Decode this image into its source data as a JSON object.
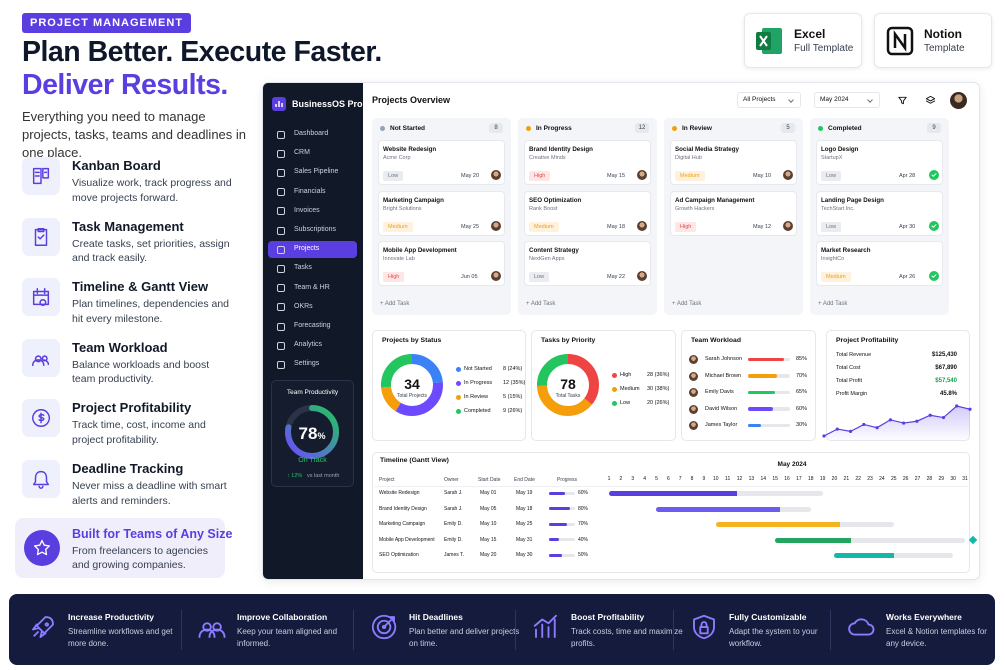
{
  "hero": {
    "badge": "PROJECT MANAGEMENT",
    "title_line1": "Plan Better. Execute Faster.",
    "title_line2": "Deliver Results.",
    "description": "Everything you need to manage projects, tasks, teams and deadlines in one place."
  },
  "features": [
    {
      "title": "Kanban Board",
      "description": "Visualize work, track progress and move projects forward."
    },
    {
      "title": "Task Management",
      "description": "Create tasks, set priorities, assign and track easily."
    },
    {
      "title": "Timeline & Gantt View",
      "description": "Plan timelines, dependencies and hit every milestone."
    },
    {
      "title": "Team Workload",
      "description": "Balance workloads and boost team productivity."
    },
    {
      "title": "Project Profitability",
      "description": "Track time, cost, income and project profitability."
    },
    {
      "title": "Deadline Tracking",
      "description": "Never miss a deadline with smart alerts and reminders."
    }
  ],
  "highlight": {
    "title": "Built for Teams of Any Size",
    "description": "From freelancers to agencies and growing companies."
  },
  "templates": [
    {
      "title": "Excel",
      "subtitle": "Full Template"
    },
    {
      "title": "Notion",
      "subtitle": "Template"
    }
  ],
  "dashboard": {
    "brand": "BusinessOS Pro",
    "nav": [
      {
        "label": "Dashboard"
      },
      {
        "label": "CRM"
      },
      {
        "label": "Sales Pipeline"
      },
      {
        "label": "Financials"
      },
      {
        "label": "Invoices"
      },
      {
        "label": "Subscriptions"
      },
      {
        "label": "Projects",
        "active": true
      },
      {
        "label": "Tasks"
      },
      {
        "label": "Team & HR"
      },
      {
        "label": "OKRs"
      },
      {
        "label": "Forecasting"
      },
      {
        "label": "Analytics"
      },
      {
        "label": "Settings"
      }
    ],
    "productivity": {
      "title": "Team Productivity",
      "value": 78,
      "unit": "%",
      "status": "On Track",
      "change": "↑ 12%",
      "change_note": "vs last month"
    },
    "page_title": "Projects Overview",
    "filters": [
      "All Projects",
      "May 2024"
    ],
    "add_task": "+ Add Task",
    "priority_colors": {
      "Low": "#64748b",
      "Medium": "#f59e0b",
      "High": "#ef4444"
    },
    "kanban": [
      {
        "name": "Not Started",
        "count": 8,
        "color": "#94a3b8",
        "cards": [
          {
            "title": "Website Redesign",
            "client": "Acme Corp",
            "tag": "Low",
            "date": "May 20"
          },
          {
            "title": "Marketing Campaign",
            "client": "Bright Solutions",
            "tag": "Medium",
            "date": "May 25"
          },
          {
            "title": "Mobile App Development",
            "client": "Innovate Lab",
            "tag": "High",
            "date": "Jun 05"
          }
        ]
      },
      {
        "name": "In Progress",
        "count": 12,
        "color": "#f59e0b",
        "cards": [
          {
            "title": "Brand Identity Design",
            "client": "Creative Minds",
            "tag": "High",
            "date": "May 15"
          },
          {
            "title": "SEO Optimization",
            "client": "Rank Boost",
            "tag": "Medium",
            "date": "May 18"
          },
          {
            "title": "Content Strategy",
            "client": "NextGen Apps",
            "tag": "Low",
            "date": "May 22"
          }
        ]
      },
      {
        "name": "In Review",
        "count": 5,
        "color": "#f59e0b",
        "cards": [
          {
            "title": "Social Media Strategy",
            "client": "Digital Hub",
            "tag": "Medium",
            "date": "May 10"
          },
          {
            "title": "Ad Campaign Management",
            "client": "Growth Hackers",
            "tag": "High",
            "date": "May 12"
          }
        ]
      },
      {
        "name": "Completed",
        "count": 9,
        "color": "#22c55e",
        "check_marks": true,
        "cards": [
          {
            "title": "Logo Design",
            "client": "StartupX",
            "tag": "Low",
            "date": "Apr 28"
          },
          {
            "title": "Landing Page Design",
            "client": "TechStart Inc.",
            "tag": "Low",
            "date": "Apr 30"
          },
          {
            "title": "Market Research",
            "client": "InsightCo",
            "tag": "Medium",
            "date": "Apr 26"
          }
        ]
      }
    ],
    "status_chart": {
      "title": "Projects by Status",
      "total": 34,
      "total_label": "Total Projects",
      "segments": [
        {
          "name": "Not Started",
          "value": 8,
          "label": "8 (24%)",
          "color": "#3b82f6"
        },
        {
          "name": "In Progress",
          "value": 12,
          "label": "12 (35%)",
          "color": "#6d4aff"
        },
        {
          "name": "In Review",
          "value": 5,
          "label": "5 (15%)",
          "color": "#f59e0b"
        },
        {
          "name": "Completed",
          "value": 9,
          "label": "9 (26%)",
          "color": "#22c55e"
        }
      ]
    },
    "priority_chart": {
      "title": "Tasks by Priority",
      "total": 78,
      "total_label": "Total Tasks",
      "segments": [
        {
          "name": "High",
          "value": 28,
          "label": "28 (36%)",
          "color": "#ef4444"
        },
        {
          "name": "Medium",
          "value": 30,
          "label": "30 (38%)",
          "color": "#f59e0b"
        },
        {
          "name": "Low",
          "value": 20,
          "label": "20 (26%)",
          "color": "#22c55e"
        }
      ]
    },
    "workload": {
      "title": "Team Workload",
      "members": [
        {
          "name": "Sarah Johnson",
          "value": 85,
          "label": "85%",
          "color": "#ef4444"
        },
        {
          "name": "Michael Brown",
          "value": 70,
          "label": "70%",
          "color": "#f59e0b"
        },
        {
          "name": "Emily Davis",
          "value": 65,
          "label": "65%",
          "color": "#22c55e"
        },
        {
          "name": "David Wilson",
          "value": 60,
          "label": "60%",
          "color": "#6d4aff"
        },
        {
          "name": "James Taylor",
          "value": 30,
          "label": "30%",
          "color": "#3b82f6"
        }
      ]
    },
    "profitability": {
      "title": "Project Profitability",
      "rows": [
        {
          "label": "Total Revenue",
          "value": "$125,430"
        },
        {
          "label": "Total Cost",
          "value": "$67,890"
        },
        {
          "label": "Total Profit",
          "value": "$57,540",
          "color": "#16a34a"
        },
        {
          "label": "Profit Margin",
          "value": "45.8%"
        }
      ],
      "trend": [
        3,
        4.5,
        4,
        5.5,
        4.8,
        6.5,
        5.8,
        6.2,
        7.5,
        7,
        9.5,
        8.8
      ]
    },
    "gantt": {
      "title": "Timeline (Gantt View)",
      "month": "May 2024",
      "columns": [
        "Project",
        "Owner",
        "Start Date",
        "End Date",
        "Progress"
      ],
      "days": [
        1,
        2,
        3,
        4,
        5,
        6,
        7,
        8,
        9,
        10,
        11,
        12,
        13,
        14,
        15,
        16,
        17,
        18,
        19,
        20,
        21,
        22,
        23,
        24,
        25,
        26,
        27,
        28,
        29,
        30,
        31
      ],
      "rows": [
        {
          "project": "Website Redesign",
          "owner": "Sarah J.",
          "start": "May 01",
          "end": "May 19",
          "start_day": 1,
          "end_day": 19,
          "progress": 60,
          "progress_label": "60%",
          "color": "#5b3ee0"
        },
        {
          "project": "Brand Identity Design",
          "owner": "Sarah J.",
          "start": "May 05",
          "end": "May 18",
          "start_day": 5,
          "end_day": 18,
          "progress": 80,
          "progress_label": "80%",
          "color": "#6d5cf0"
        },
        {
          "project": "Marketing Campaign",
          "owner": "Emily D.",
          "start": "May 10",
          "end": "May 25",
          "start_day": 10,
          "end_day": 25,
          "progress": 70,
          "progress_label": "70%",
          "color": "#f5b321"
        },
        {
          "project": "Mobile App Development",
          "owner": "Emily D.",
          "start": "May 15",
          "end": "May 31",
          "start_day": 15,
          "end_day": 31,
          "progress": 40,
          "progress_label": "40%",
          "color": "#22a55e",
          "milestone": true
        },
        {
          "project": "SEO Optimization",
          "owner": "James T.",
          "start": "May 20",
          "end": "May 30",
          "start_day": 20,
          "end_day": 30,
          "progress": 50,
          "progress_label": "50%",
          "color": "#14b8a6"
        }
      ]
    }
  },
  "benefits": [
    {
      "title": "Increase Productivity",
      "description": "Streamline workflows and get more done."
    },
    {
      "title": "Improve Collaboration",
      "description": "Keep your team aligned and informed."
    },
    {
      "title": "Hit Deadlines",
      "description": "Plan better and deliver projects on time."
    },
    {
      "title": "Boost Profitability",
      "description": "Track costs, time and maximize profits."
    },
    {
      "title": "Fully Customizable",
      "description": "Adapt the system to your workflow."
    },
    {
      "title": "Works Everywhere",
      "description": "Excel & Notion templates for any device."
    }
  ]
}
